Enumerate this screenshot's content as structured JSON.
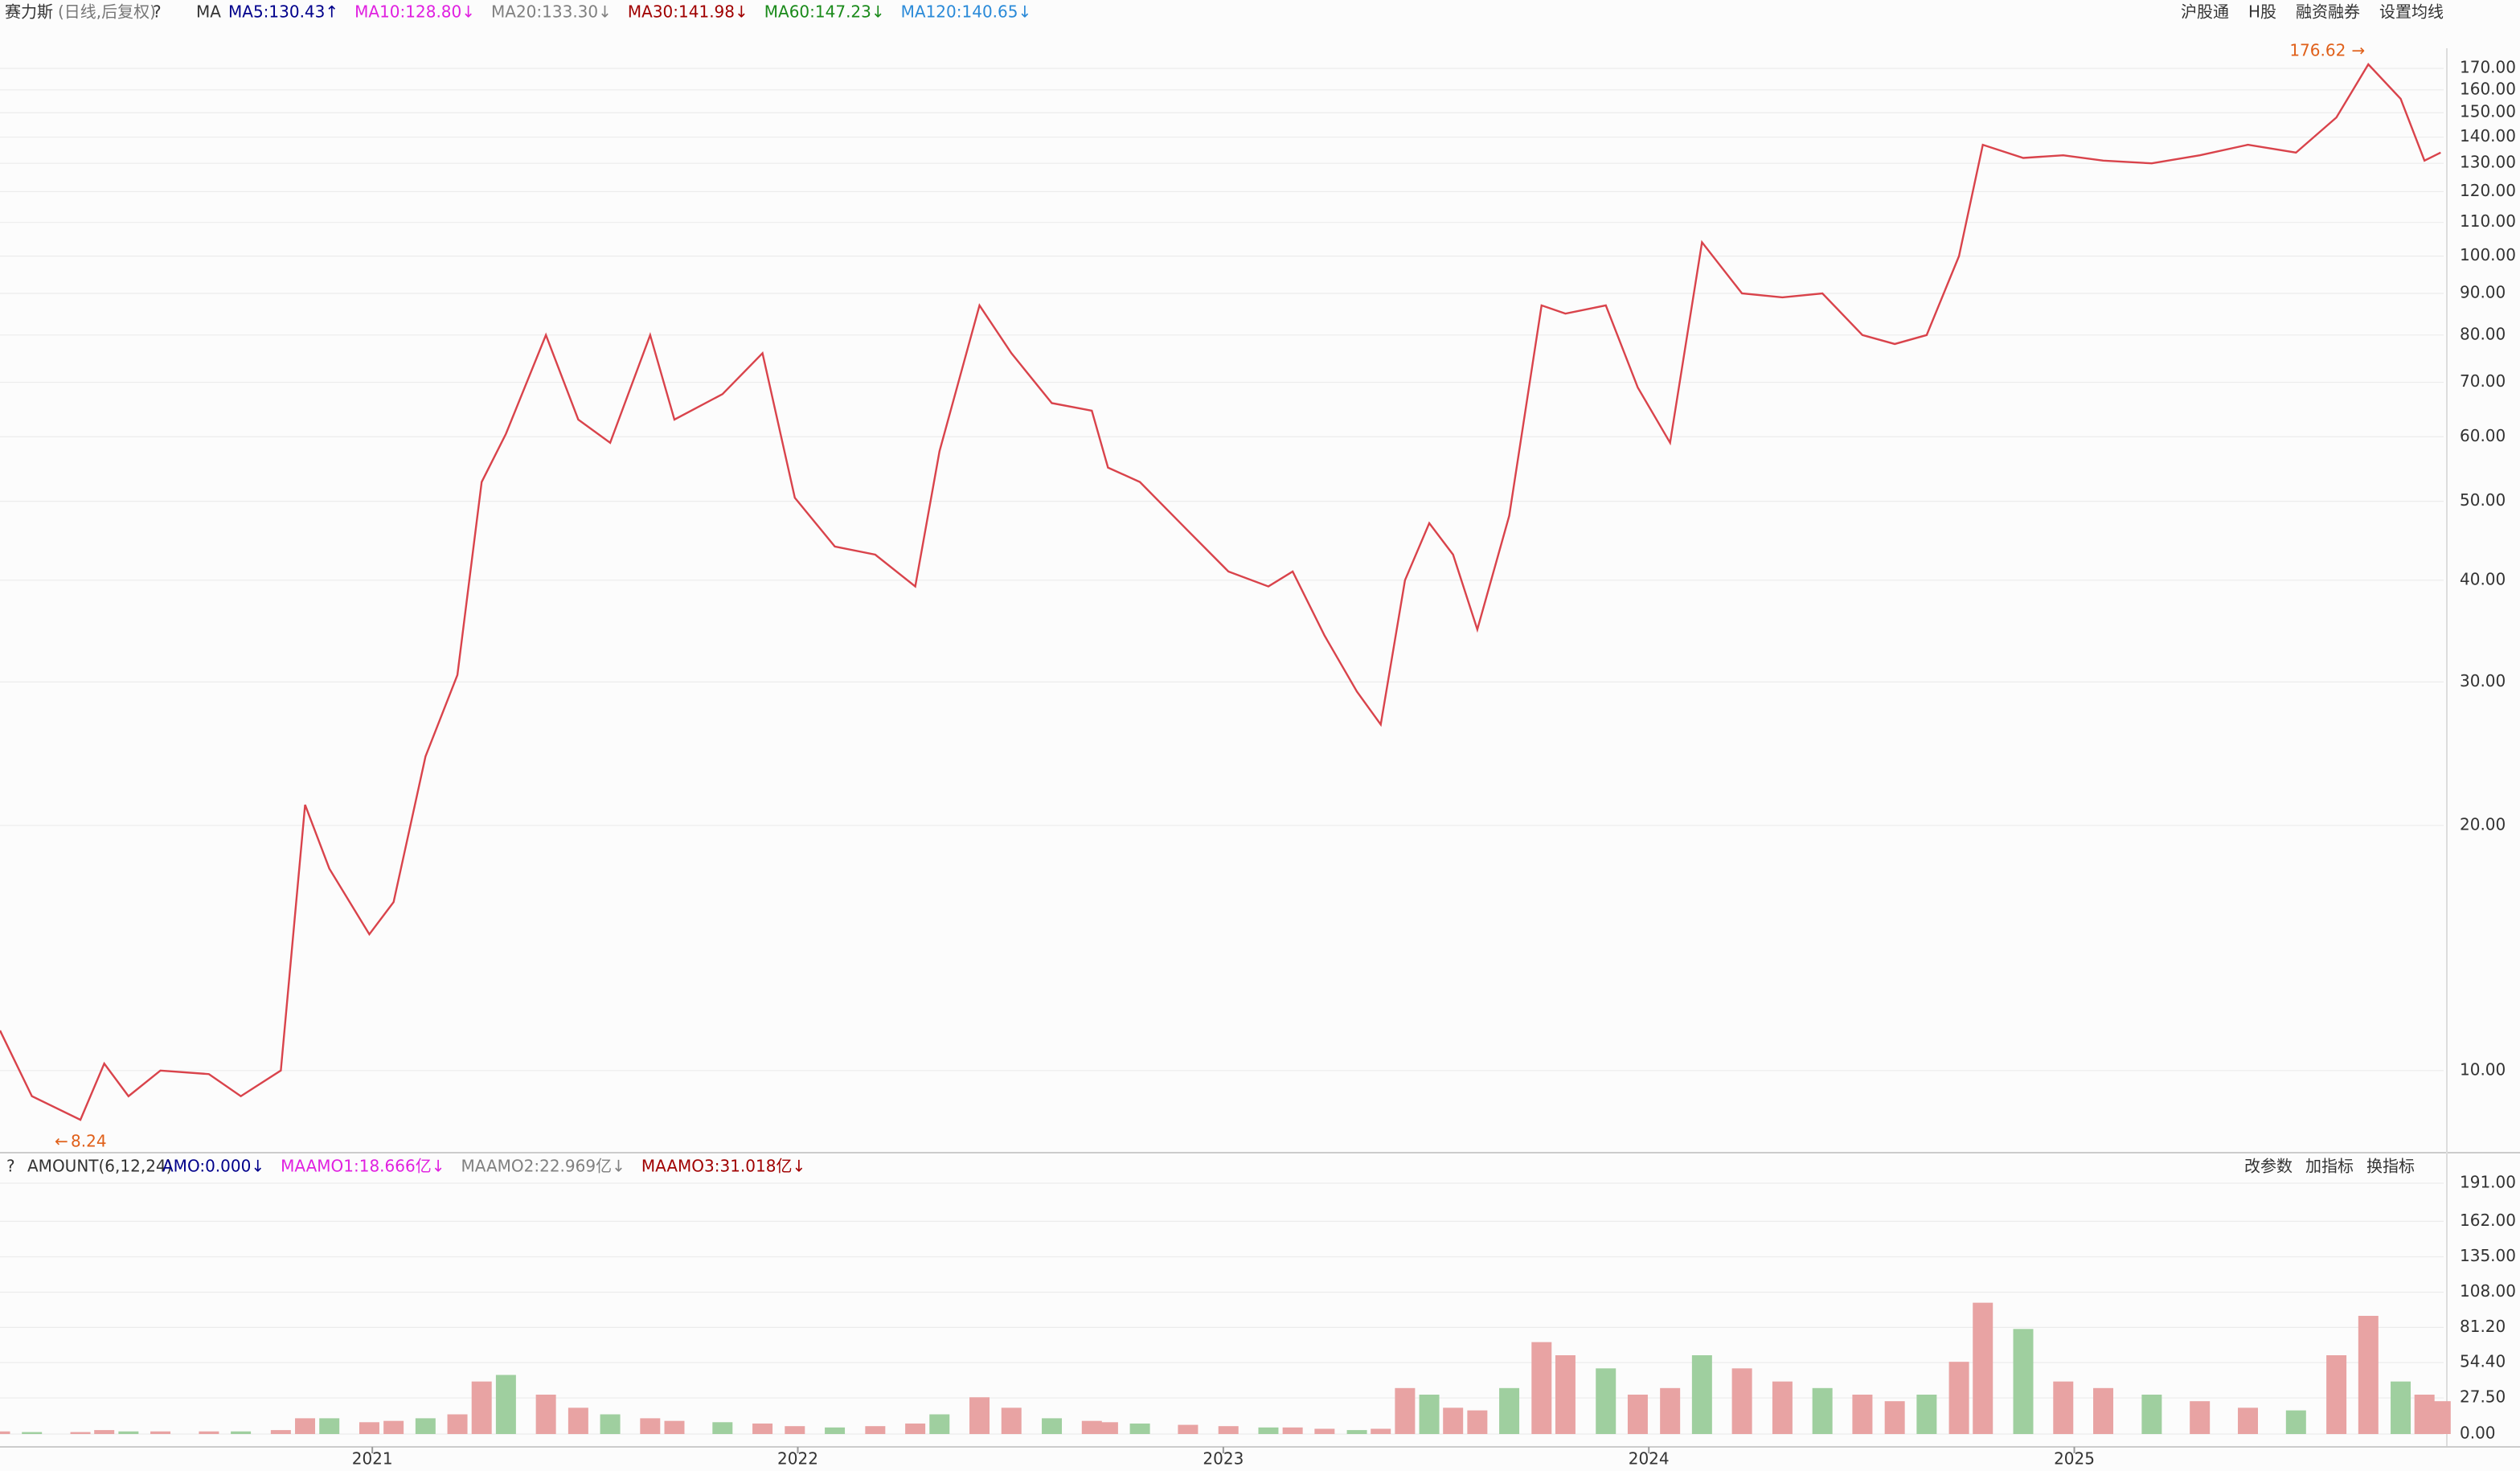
{
  "header": {
    "title": "赛力斯",
    "subtitle": "(日线,后复权)",
    "help": "?",
    "indicator_name": "MA",
    "toolbar": [
      "沪股通",
      "H股",
      "融资融券",
      "设置均线"
    ]
  },
  "chart_data": [
    {
      "type": "line",
      "yscale": "log",
      "color": "#d9434b",
      "grid": true,
      "legend": [
        {
          "label": "MA5:130.43↑",
          "color": "#00008b"
        },
        {
          "label": "MA10:128.80↓",
          "color": "#e020e0"
        },
        {
          "label": "MA20:133.30↓",
          "color": "#808080"
        },
        {
          "label": "MA30:141.98↓",
          "color": "#a00000"
        },
        {
          "label": "MA60:147.23↓",
          "color": "#1a8a1a"
        },
        {
          "label": "MA120:140.65↓",
          "color": "#2a8ad8"
        }
      ],
      "max_value": 176.62,
      "min_value": 8.24,
      "x": [
        2020.125,
        2020.2,
        2020.314,
        2020.37,
        2020.427,
        2020.502,
        2020.616,
        2020.691,
        2020.785,
        2020.842,
        2020.899,
        2020.993,
        2021.05,
        2021.125,
        2021.2,
        2021.257,
        2021.314,
        2021.408,
        2021.484,
        2021.559,
        2021.653,
        2021.71,
        2021.823,
        2021.917,
        2021.993,
        2022.087,
        2022.182,
        2022.276,
        2022.333,
        2022.427,
        2022.502,
        2022.597,
        2022.691,
        2022.729,
        2022.804,
        2022.917,
        2023.012,
        2023.106,
        2023.163,
        2023.238,
        2023.314,
        2023.37,
        2023.427,
        2023.484,
        2023.54,
        2023.597,
        2023.672,
        2023.748,
        2023.804,
        2023.899,
        2023.974,
        2024.05,
        2024.125,
        2024.219,
        2024.314,
        2024.408,
        2024.502,
        2024.578,
        2024.653,
        2024.729,
        2024.785,
        2024.88,
        2024.974,
        2025.068,
        2025.182,
        2025.295,
        2025.408,
        2025.521,
        2025.616,
        2025.691,
        2025.767,
        2025.823,
        2025.861
      ],
      "values": [
        11.2,
        9.3,
        8.7,
        10.2,
        9.3,
        10,
        9.9,
        9.3,
        10,
        21.2,
        17.7,
        14.7,
        16.1,
        24.3,
        30.6,
        52.8,
        60.5,
        80,
        63,
        59,
        80,
        63,
        67.7,
        76,
        50.5,
        44,
        43,
        39.3,
        57.6,
        87,
        76,
        66,
        64.6,
        55,
        52.8,
        46,
        41,
        39.3,
        41,
        34.2,
        29.2,
        26.6,
        40,
        47,
        43,
        34.8,
        48,
        87,
        85,
        87,
        69,
        59,
        104,
        90,
        89,
        90,
        80,
        78,
        80,
        100,
        137,
        132,
        133,
        131,
        130,
        133,
        137,
        134,
        148,
        172,
        156,
        131,
        134
      ],
      "xlim": [
        2020.125,
        2025.868
      ],
      "ylim": [
        8,
        180
      ],
      "yticks": [
        {
          "value": 10,
          "label": "10.00"
        },
        {
          "value": 20,
          "label": "20.00"
        },
        {
          "value": 30,
          "label": "30.00"
        },
        {
          "value": 40,
          "label": "40.00"
        },
        {
          "value": 50,
          "label": "50.00"
        },
        {
          "value": 60,
          "label": "60.00"
        },
        {
          "value": 70,
          "label": "70.00"
        },
        {
          "value": 80,
          "label": "80.00"
        },
        {
          "value": 90,
          "label": "90.00"
        },
        {
          "value": 100,
          "label": "100.00"
        },
        {
          "value": 110,
          "label": "110.00"
        },
        {
          "value": 120,
          "label": "120.00"
        },
        {
          "value": 130,
          "label": "130.00"
        },
        {
          "value": 140,
          "label": "140.00"
        },
        {
          "value": 150,
          "label": "150.00"
        },
        {
          "value": 160,
          "label": "160.00"
        },
        {
          "value": 170,
          "label": "170.00"
        }
      ]
    },
    {
      "type": "bar",
      "color": "#e8a3a3",
      "grid": true,
      "help": "?",
      "indicator_title": "AMOUNT(6,12,24)",
      "legend": [
        {
          "label": "AMO:0.000↓",
          "color": "#00008b"
        },
        {
          "label": "MAAMO1:18.666亿↓",
          "color": "#e020e0"
        },
        {
          "label": "MAAMO2:22.969亿↓",
          "color": "#808080"
        },
        {
          "label": "MAAMO3:31.018亿↓",
          "color": "#a00000"
        }
      ],
      "toolbar": [
        "改参数",
        "加指标",
        "换指标"
      ],
      "x": [
        2020.125,
        2020.2,
        2020.314,
        2020.37,
        2020.427,
        2020.502,
        2020.616,
        2020.691,
        2020.785,
        2020.842,
        2020.899,
        2020.993,
        2021.05,
        2021.125,
        2021.2,
        2021.257,
        2021.314,
        2021.408,
        2021.484,
        2021.559,
        2021.653,
        2021.71,
        2021.823,
        2021.917,
        2021.993,
        2022.087,
        2022.182,
        2022.276,
        2022.333,
        2022.427,
        2022.502,
        2022.597,
        2022.691,
        2022.729,
        2022.804,
        2022.917,
        2023.012,
        2023.106,
        2023.163,
        2023.238,
        2023.314,
        2023.37,
        2023.427,
        2023.484,
        2023.54,
        2023.597,
        2023.672,
        2023.748,
        2023.804,
        2023.899,
        2023.974,
        2024.05,
        2024.125,
        2024.219,
        2024.314,
        2024.408,
        2024.502,
        2024.578,
        2024.653,
        2024.729,
        2024.785,
        2024.88,
        2024.974,
        2025.068,
        2025.182,
        2025.295,
        2025.408,
        2025.521,
        2025.616,
        2025.691,
        2025.767,
        2025.823,
        2025.861
      ],
      "values": [
        2,
        1.5,
        1.5,
        3,
        2,
        2,
        2,
        2,
        3,
        12,
        12,
        9,
        10,
        12,
        15,
        40,
        45,
        30,
        20,
        15,
        12,
        10,
        9,
        8,
        6,
        5,
        6,
        8,
        15,
        28,
        20,
        12,
        10,
        9,
        8,
        7,
        6,
        5,
        5,
        4,
        3,
        4,
        35,
        30,
        20,
        18,
        35,
        70,
        60,
        50,
        30,
        35,
        60,
        50,
        40,
        35,
        30,
        25,
        30,
        55,
        100,
        80,
        40,
        35,
        30,
        25,
        20,
        18,
        60,
        90,
        40,
        30,
        25
      ],
      "xlim": [
        2020.125,
        2025.868
      ],
      "ylim": [
        0,
        191
      ],
      "xticks": [
        2021,
        2022,
        2023,
        2024,
        2025
      ],
      "yticks": [
        {
          "value": 0,
          "label": "0.00"
        },
        {
          "value": 27.5,
          "label": "27.50"
        },
        {
          "value": 54.4,
          "label": "54.40"
        },
        {
          "value": 81.2,
          "label": "81.20"
        },
        {
          "value": 108,
          "label": "108.00"
        },
        {
          "value": 135,
          "label": "135.00"
        },
        {
          "value": 162,
          "label": "162.00"
        },
        {
          "value": 191,
          "label": "191.00"
        }
      ]
    }
  ]
}
